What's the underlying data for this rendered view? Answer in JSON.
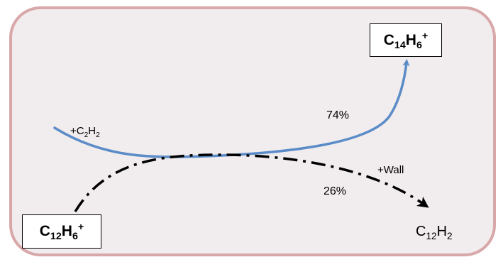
{
  "species": {
    "target": {
      "base1": "C",
      "sub1": "14",
      "base2": "H",
      "sub2": "6",
      "sup": "+"
    },
    "reactant": {
      "base1": "C",
      "sub1": "12",
      "base2": "H",
      "sub2": "6",
      "sup": "+"
    },
    "product": {
      "base1": "C",
      "sub1": "12",
      "base2": "H",
      "sub2": "2"
    }
  },
  "reagent": {
    "prefix": "+C",
    "sub1": "2",
    "base2": "H",
    "sub2": "2"
  },
  "wall_label": "+Wall",
  "percentages": {
    "main": "74%",
    "minor": "26%"
  },
  "colors": {
    "panel_bg": "#f1eced",
    "panel_border": "#d8a7a9",
    "main_path": "#5b8cc8",
    "minor_path": "#000000"
  }
}
